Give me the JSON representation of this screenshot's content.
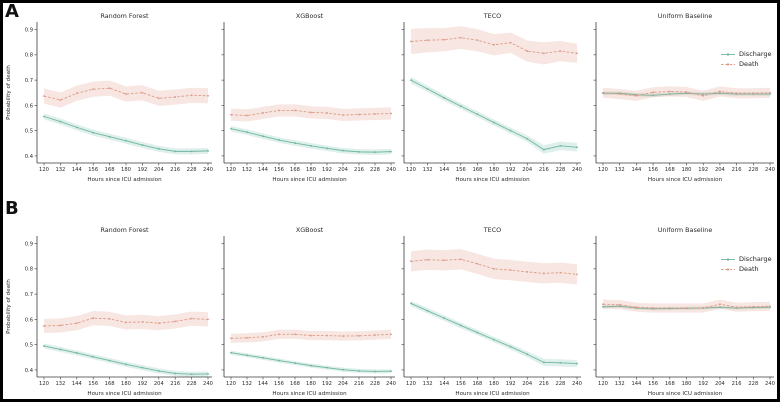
{
  "figure": {
    "panel_a_label": "A",
    "panel_b_label": "B",
    "background": "#ffffff",
    "frame_border": "#000000"
  },
  "chart_data": {
    "type": "line",
    "x": [
      120,
      132,
      144,
      156,
      168,
      180,
      192,
      204,
      216,
      228,
      240
    ],
    "xlabel": "Hours since ICU admission",
    "ylabel": "Probability of death",
    "yticks": [
      0.4,
      0.5,
      0.6,
      0.7,
      0.8,
      0.9
    ],
    "ylim": [
      0.372,
      0.93
    ],
    "grid": false,
    "legend": [
      "Discharge",
      "Death"
    ],
    "legend_position": "right-of-last-subplot",
    "colors": {
      "Discharge": "#6fb7a2",
      "Death": "#de9c89"
    },
    "band_note": "shaded regions are confidence bands, half-width given by ci",
    "panels": [
      {
        "label": "A",
        "subplots": [
          {
            "title": "Random Forest",
            "series": [
              {
                "name": "Discharge",
                "values": [
                  0.556,
                  0.536,
                  0.513,
                  0.492,
                  0.476,
                  0.46,
                  0.443,
                  0.428,
                  0.418,
                  0.418,
                  0.42
                ],
                "ci": 0.012
              },
              {
                "name": "Death",
                "values": [
                  0.637,
                  0.621,
                  0.648,
                  0.664,
                  0.668,
                  0.645,
                  0.65,
                  0.628,
                  0.633,
                  0.64,
                  0.638
                ],
                "ci": 0.03
              }
            ]
          },
          {
            "title": "XGBoost",
            "series": [
              {
                "name": "Discharge",
                "values": [
                  0.508,
                  0.494,
                  0.478,
                  0.463,
                  0.451,
                  0.44,
                  0.43,
                  0.421,
                  0.416,
                  0.415,
                  0.417
                ],
                "ci": 0.011
              },
              {
                "name": "Death",
                "values": [
                  0.563,
                  0.56,
                  0.57,
                  0.58,
                  0.58,
                  0.572,
                  0.57,
                  0.562,
                  0.564,
                  0.566,
                  0.568
                ],
                "ci": 0.024
              }
            ]
          },
          {
            "title": "TECO",
            "series": [
              {
                "name": "Discharge",
                "values": [
                  0.7,
                  0.665,
                  0.63,
                  0.597,
                  0.565,
                  0.532,
                  0.5,
                  0.468,
                  0.425,
                  0.44,
                  0.434
                ],
                "ci": [
                  0.013,
                  0.012,
                  0.012,
                  0.012,
                  0.012,
                  0.012,
                  0.012,
                  0.013,
                  0.017,
                  0.017,
                  0.017
                ]
              },
              {
                "name": "Death",
                "values": [
                  0.853,
                  0.858,
                  0.86,
                  0.868,
                  0.858,
                  0.84,
                  0.848,
                  0.815,
                  0.806,
                  0.815,
                  0.806
                ],
                "ci": [
                  0.05,
                  0.048,
                  0.046,
                  0.045,
                  0.044,
                  0.042,
                  0.04,
                  0.042,
                  0.044,
                  0.04,
                  0.038
                ]
              }
            ]
          },
          {
            "title": "Uniform Baseline",
            "series": [
              {
                "name": "Discharge",
                "values": [
                  0.648,
                  0.648,
                  0.642,
                  0.64,
                  0.645,
                  0.648,
                  0.645,
                  0.648,
                  0.645,
                  0.645,
                  0.645
                ],
                "ci": 0.007
              },
              {
                "name": "Death",
                "values": [
                  0.65,
                  0.645,
                  0.638,
                  0.652,
                  0.655,
                  0.653,
                  0.638,
                  0.655,
                  0.648,
                  0.648,
                  0.65
                ],
                "ci": 0.02
              }
            ]
          }
        ]
      },
      {
        "label": "B",
        "subplots": [
          {
            "title": "Random Forest",
            "series": [
              {
                "name": "Discharge",
                "values": [
                  0.495,
                  0.481,
                  0.467,
                  0.452,
                  0.437,
                  0.422,
                  0.409,
                  0.396,
                  0.386,
                  0.383,
                  0.384
                ],
                "ci": 0.01
              },
              {
                "name": "Death",
                "values": [
                  0.574,
                  0.576,
                  0.585,
                  0.605,
                  0.602,
                  0.588,
                  0.59,
                  0.585,
                  0.592,
                  0.603,
                  0.6
                ],
                "ci": 0.028
              }
            ]
          },
          {
            "title": "XGBoost",
            "series": [
              {
                "name": "Discharge",
                "values": [
                  0.468,
                  0.458,
                  0.448,
                  0.437,
                  0.427,
                  0.417,
                  0.409,
                  0.401,
                  0.396,
                  0.394,
                  0.395
                ],
                "ci": 0.008
              },
              {
                "name": "Death",
                "values": [
                  0.525,
                  0.527,
                  0.531,
                  0.541,
                  0.541,
                  0.536,
                  0.536,
                  0.534,
                  0.535,
                  0.538,
                  0.541
                ],
                "ci": 0.018
              }
            ]
          },
          {
            "title": "TECO",
            "series": [
              {
                "name": "Discharge",
                "values": [
                  0.663,
                  0.634,
                  0.605,
                  0.576,
                  0.548,
                  0.52,
                  0.492,
                  0.462,
                  0.43,
                  0.428,
                  0.425
                ],
                "ci": [
                  0.011,
                  0.011,
                  0.011,
                  0.011,
                  0.011,
                  0.011,
                  0.011,
                  0.012,
                  0.014,
                  0.014,
                  0.014
                ]
              },
              {
                "name": "Death",
                "values": [
                  0.83,
                  0.836,
                  0.834,
                  0.838,
                  0.82,
                  0.8,
                  0.795,
                  0.788,
                  0.782,
                  0.785,
                  0.778
                ],
                "ci": 0.04
              }
            ]
          },
          {
            "title": "Uniform Baseline",
            "series": [
              {
                "name": "Discharge",
                "values": [
                  0.65,
                  0.652,
                  0.645,
                  0.642,
                  0.643,
                  0.644,
                  0.645,
                  0.648,
                  0.645,
                  0.647,
                  0.648
                ],
                "ci": 0.006
              },
              {
                "name": "Death",
                "values": [
                  0.66,
                  0.658,
                  0.648,
                  0.645,
                  0.645,
                  0.645,
                  0.645,
                  0.66,
                  0.648,
                  0.65,
                  0.652
                ],
                "ci": 0.018
              }
            ]
          }
        ]
      }
    ]
  }
}
